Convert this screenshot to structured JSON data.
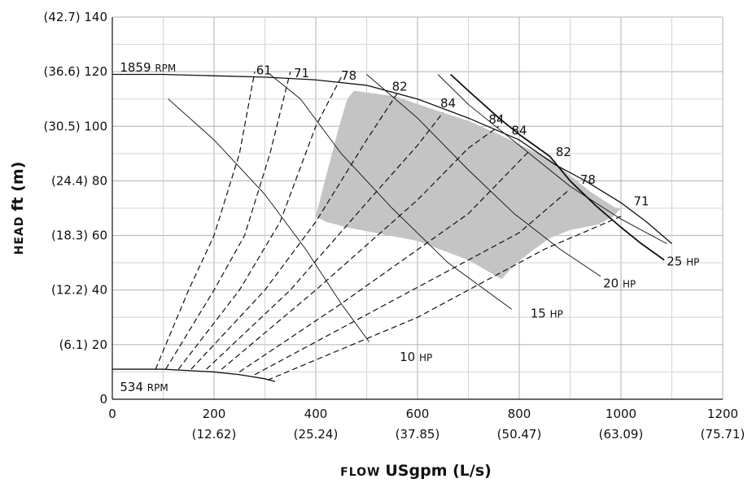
{
  "chart_data": {
    "type": "line",
    "xlabel_prefix": "flow",
    "xlabel_main": "USgpm (L/s)",
    "ylabel_prefix": "head",
    "ylabel_main": "ft (m)",
    "xlim": [
      0,
      1200
    ],
    "ylim": [
      0,
      140
    ],
    "grid": true,
    "x_ticks": [
      {
        "value": 0,
        "label": "0",
        "sub": ""
      },
      {
        "value": 200,
        "label": "200",
        "sub": "(12.62)"
      },
      {
        "value": 400,
        "label": "400",
        "sub": "(25.24)"
      },
      {
        "value": 600,
        "label": "600",
        "sub": "(37.85)"
      },
      {
        "value": 800,
        "label": "800",
        "sub": "(50.47)"
      },
      {
        "value": 1000,
        "label": "1000",
        "sub": "(63.09)"
      },
      {
        "value": 1200,
        "label": "1200",
        "sub": "(75.71)"
      }
    ],
    "y_ticks": [
      {
        "value": 0,
        "label": "0"
      },
      {
        "value": 20,
        "label": "(6.1) 20"
      },
      {
        "value": 40,
        "label": "(12.2) 40"
      },
      {
        "value": 60,
        "label": "(18.3) 60"
      },
      {
        "value": 80,
        "label": "(24.4) 80"
      },
      {
        "value": 100,
        "label": "(30.5) 100"
      },
      {
        "value": 120,
        "label": "(36.6) 120"
      },
      {
        "value": 140,
        "label": "(42.7) 140"
      }
    ],
    "colors": {
      "region": "#c4c4c4",
      "line": "#111111"
    },
    "region": {
      "points": [
        [
          400,
          67
        ],
        [
          422,
          83
        ],
        [
          446,
          100
        ],
        [
          462,
          110
        ],
        [
          475,
          113
        ],
        [
          555,
          111
        ],
        [
          650,
          105
        ],
        [
          700,
          102
        ],
        [
          760,
          97
        ],
        [
          860,
          88
        ],
        [
          940,
          76
        ],
        [
          990,
          70
        ],
        [
          1000,
          70
        ],
        [
          985,
          67
        ],
        [
          955,
          64
        ],
        [
          900,
          62
        ],
        [
          860,
          59
        ],
        [
          830,
          55
        ],
        [
          795,
          50
        ],
        [
          765,
          44
        ],
        [
          700,
          51
        ],
        [
          600,
          58
        ],
        [
          460,
          63
        ],
        [
          420,
          65
        ],
        [
          400,
          67
        ]
      ]
    },
    "series": [
      {
        "name": "1859 RPM",
        "style": "solid",
        "width": 1.3,
        "points": [
          [
            0,
            119
          ],
          [
            100,
            119
          ],
          [
            200,
            118.5
          ],
          [
            300,
            118
          ],
          [
            400,
            117
          ],
          [
            500,
            115
          ],
          [
            600,
            110
          ],
          [
            700,
            103
          ],
          [
            800,
            95
          ],
          [
            870,
            86
          ],
          [
            930,
            80
          ],
          [
            1000,
            72
          ],
          [
            1050,
            65
          ],
          [
            1100,
            57
          ]
        ]
      },
      {
        "name": "534 RPM",
        "style": "solid",
        "width": 1.3,
        "points": [
          [
            0,
            11
          ],
          [
            100,
            11
          ],
          [
            150,
            10.5
          ],
          [
            200,
            10
          ],
          [
            250,
            9
          ],
          [
            300,
            7.5
          ],
          [
            320,
            6.5
          ]
        ]
      },
      {
        "name": "",
        "style": "solid",
        "width": 1.8,
        "points": [
          [
            665,
            119
          ],
          [
            700,
            113
          ],
          [
            760,
            103
          ],
          [
            800,
            97
          ],
          [
            860,
            89
          ],
          [
            900,
            80
          ],
          [
            950,
            71
          ],
          [
            1000,
            63
          ],
          [
            1040,
            57
          ],
          [
            1085,
            51
          ]
        ]
      },
      {
        "name": "",
        "style": "dashed",
        "width": 1.2,
        "points": [
          [
            85,
            11
          ],
          [
            150,
            40
          ],
          [
            200,
            60
          ],
          [
            250,
            90
          ],
          [
            280,
            120
          ]
        ]
      },
      {
        "name": "",
        "style": "dashed",
        "width": 1.2,
        "points": [
          [
            105,
            11
          ],
          [
            200,
            40
          ],
          [
            260,
            60
          ],
          [
            310,
            90
          ],
          [
            350,
            120
          ]
        ]
      },
      {
        "name": "",
        "style": "dashed",
        "width": 1.2,
        "points": [
          [
            130,
            11
          ],
          [
            250,
            40
          ],
          [
            330,
            65
          ],
          [
            400,
            100
          ],
          [
            450,
            118
          ]
        ]
      },
      {
        "name": "",
        "style": "dashed",
        "width": 1.2,
        "points": [
          [
            155,
            11
          ],
          [
            300,
            40
          ],
          [
            400,
            65
          ],
          [
            500,
            95
          ],
          [
            560,
            112
          ]
        ]
      },
      {
        "name": "",
        "style": "dashed",
        "width": 1.2,
        "points": [
          [
            185,
            11
          ],
          [
            350,
            40
          ],
          [
            500,
            72
          ],
          [
            600,
            93
          ],
          [
            650,
            105
          ]
        ]
      },
      {
        "name": "",
        "style": "dashed",
        "width": 1.2,
        "points": [
          [
            215,
            11
          ],
          [
            400,
            40
          ],
          [
            600,
            73
          ],
          [
            700,
            92
          ],
          [
            760,
            100
          ]
        ]
      },
      {
        "name": "",
        "style": "dashed",
        "width": 1.2,
        "points": [
          [
            250,
            10
          ],
          [
            450,
            35
          ],
          [
            700,
            68
          ],
          [
            820,
            91
          ]
        ]
      },
      {
        "name": "",
        "style": "dashed",
        "width": 1.2,
        "points": [
          [
            280,
            9
          ],
          [
            550,
            36
          ],
          [
            800,
            61
          ],
          [
            900,
            77
          ]
        ]
      },
      {
        "name": "",
        "style": "dashed",
        "width": 1.2,
        "points": [
          [
            305,
            7
          ],
          [
            600,
            30
          ],
          [
            850,
            55
          ],
          [
            1000,
            67
          ]
        ]
      },
      {
        "name": "",
        "style": "solid",
        "width": 0.9,
        "points": [
          [
            110,
            110
          ],
          [
            200,
            95
          ],
          [
            300,
            75
          ],
          [
            380,
            55
          ],
          [
            450,
            35
          ],
          [
            505,
            21
          ]
        ]
      },
      {
        "name": "",
        "style": "solid",
        "width": 0.9,
        "points": [
          [
            310,
            119
          ],
          [
            370,
            110
          ],
          [
            450,
            90
          ],
          [
            550,
            70
          ],
          [
            660,
            50
          ],
          [
            785,
            33
          ]
        ]
      },
      {
        "name": "",
        "style": "solid",
        "width": 0.9,
        "points": [
          [
            500,
            119
          ],
          [
            600,
            103
          ],
          [
            700,
            84
          ],
          [
            790,
            68
          ],
          [
            880,
            55
          ],
          [
            960,
            45
          ]
        ]
      },
      {
        "name": "",
        "style": "solid",
        "width": 0.9,
        "points": [
          [
            640,
            119
          ],
          [
            700,
            108
          ],
          [
            800,
            93
          ],
          [
            900,
            78
          ],
          [
            1000,
            66
          ],
          [
            1090,
            57
          ]
        ]
      }
    ],
    "efficiency_labels": [
      {
        "text": "61",
        "x": 298,
        "y": 119
      },
      {
        "text": "71",
        "x": 372,
        "y": 118
      },
      {
        "text": "78",
        "x": 465,
        "y": 117
      },
      {
        "text": "82",
        "x": 565,
        "y": 113
      },
      {
        "text": "84",
        "x": 660,
        "y": 107
      },
      {
        "text": "84",
        "x": 755,
        "y": 101
      },
      {
        "text": "84",
        "x": 800,
        "y": 97
      },
      {
        "text": "82",
        "x": 887,
        "y": 89
      },
      {
        "text": "78",
        "x": 935,
        "y": 79
      },
      {
        "text": "71",
        "x": 1040,
        "y": 71
      }
    ],
    "annotations": [
      {
        "label": "10",
        "unit": "HP",
        "x": 565,
        "y": 14
      },
      {
        "label": "15",
        "unit": "HP",
        "x": 822,
        "y": 30
      },
      {
        "label": "20",
        "unit": "HP",
        "x": 965,
        "y": 41
      },
      {
        "label": "25",
        "unit": "HP",
        "x": 1090,
        "y": 49
      },
      {
        "label": "1859",
        "unit": "RPM",
        "x": 15,
        "y": 120
      },
      {
        "label": "534",
        "unit": "RPM",
        "x": 15,
        "y": 3
      }
    ]
  }
}
